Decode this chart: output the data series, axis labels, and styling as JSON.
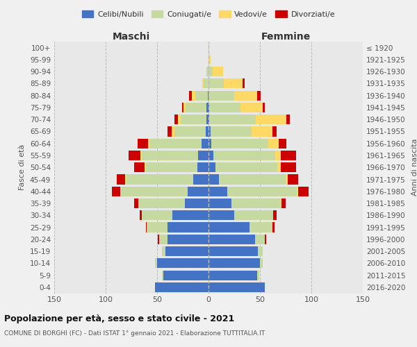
{
  "age_groups": [
    "0-4",
    "5-9",
    "10-14",
    "15-19",
    "20-24",
    "25-29",
    "30-34",
    "35-39",
    "40-44",
    "45-49",
    "50-54",
    "55-59",
    "60-64",
    "65-69",
    "70-74",
    "75-79",
    "80-84",
    "85-89",
    "90-94",
    "95-99",
    "100+"
  ],
  "birth_years": [
    "2016-2020",
    "2011-2015",
    "2006-2010",
    "2001-2005",
    "1996-2000",
    "1991-1995",
    "1986-1990",
    "1981-1985",
    "1976-1980",
    "1971-1975",
    "1966-1970",
    "1961-1965",
    "1956-1960",
    "1951-1955",
    "1946-1950",
    "1941-1945",
    "1936-1940",
    "1931-1935",
    "1926-1930",
    "1921-1925",
    "≤ 1920"
  ],
  "male": {
    "celibe": [
      52,
      44,
      50,
      42,
      40,
      40,
      35,
      23,
      20,
      15,
      11,
      10,
      7,
      3,
      2,
      2,
      1,
      0,
      0,
      0,
      0
    ],
    "coniugato": [
      0,
      1,
      2,
      3,
      8,
      20,
      30,
      45,
      65,
      65,
      50,
      55,
      50,
      30,
      25,
      20,
      12,
      5,
      2,
      0,
      0
    ],
    "vedovo": [
      0,
      0,
      0,
      0,
      0,
      0,
      0,
      0,
      1,
      1,
      1,
      1,
      2,
      3,
      3,
      2,
      3,
      1,
      0,
      0,
      0
    ],
    "divorziato": [
      0,
      0,
      0,
      0,
      1,
      1,
      2,
      4,
      8,
      8,
      10,
      12,
      10,
      4,
      3,
      2,
      3,
      0,
      0,
      0,
      0
    ]
  },
  "female": {
    "nubile": [
      55,
      47,
      50,
      48,
      45,
      40,
      25,
      22,
      18,
      10,
      7,
      5,
      3,
      2,
      1,
      1,
      0,
      0,
      0,
      0,
      0
    ],
    "coniugata": [
      0,
      2,
      3,
      5,
      10,
      22,
      38,
      48,
      68,
      65,
      60,
      60,
      55,
      40,
      45,
      30,
      25,
      15,
      4,
      0,
      1
    ],
    "vedova": [
      0,
      0,
      0,
      0,
      0,
      0,
      0,
      1,
      1,
      2,
      3,
      5,
      10,
      20,
      30,
      22,
      22,
      18,
      10,
      2,
      0
    ],
    "divorziata": [
      0,
      0,
      0,
      0,
      1,
      2,
      3,
      4,
      10,
      10,
      15,
      15,
      8,
      4,
      3,
      2,
      4,
      2,
      0,
      0,
      0
    ]
  },
  "colors": {
    "celibe": "#4472C4",
    "coniugato": "#C5D9A0",
    "vedovo": "#FFD966",
    "divorziato": "#CC0000"
  },
  "xlim": 150,
  "title": "Popolazione per età, sesso e stato civile - 2021",
  "subtitle": "COMUNE DI BORGHI (FC) - Dati ISTAT 1° gennaio 2021 - Elaborazione TUTTITALIA.IT",
  "ylabel_left": "Fasce di età",
  "ylabel_right": "Anni di nascita",
  "xlabel_male": "Maschi",
  "xlabel_female": "Femmine",
  "legend_labels": [
    "Celibi/Nubili",
    "Coniugati/e",
    "Vedovi/e",
    "Divorziati/e"
  ],
  "bg_color": "#f0f0f0",
  "plot_bg": "#e8e8e8",
  "bar_height": 0.82
}
